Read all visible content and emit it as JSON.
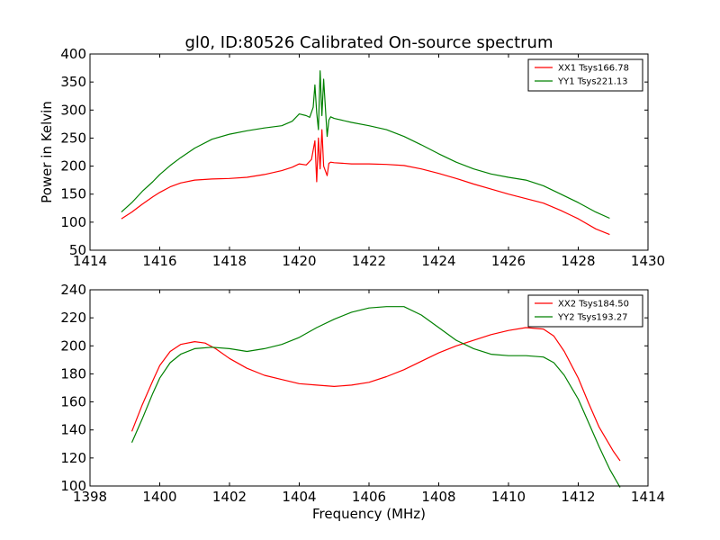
{
  "figure_title": "gl0, ID:80526 Calibrated On-source spectrum",
  "chart_data": [
    {
      "type": "line",
      "title": "gl0, ID:80526 Calibrated On-source spectrum",
      "xlabel": "",
      "ylabel": "Power in Kelvin",
      "xlim": [
        1414,
        1430
      ],
      "ylim": [
        50,
        400
      ],
      "xticks": [
        1414,
        1416,
        1418,
        1420,
        1422,
        1424,
        1426,
        1428,
        1430
      ],
      "yticks": [
        50,
        100,
        150,
        200,
        250,
        300,
        350,
        400
      ],
      "legend_position": "top-right",
      "grid": false,
      "series": [
        {
          "name": "XX1 Tsys166.78",
          "color": "#ff0000",
          "x": [
            1414.9,
            1415.2,
            1415.5,
            1415.8,
            1416.0,
            1416.3,
            1416.6,
            1417.0,
            1417.5,
            1418.0,
            1418.5,
            1419.0,
            1419.5,
            1419.8,
            1420.0,
            1420.2,
            1420.35,
            1420.45,
            1420.5,
            1420.55,
            1420.6,
            1420.65,
            1420.7,
            1420.8,
            1420.85,
            1420.9,
            1421.0,
            1421.5,
            1422.0,
            1422.5,
            1423.0,
            1423.5,
            1424.0,
            1424.5,
            1425.0,
            1425.5,
            1426.0,
            1426.5,
            1427.0,
            1427.5,
            1428.0,
            1428.5,
            1428.9
          ],
          "y": [
            106,
            118,
            132,
            145,
            153,
            163,
            170,
            175,
            177,
            178,
            180,
            185,
            192,
            198,
            204,
            202,
            212,
            245,
            172,
            250,
            195,
            265,
            200,
            183,
            205,
            207,
            206,
            204,
            204,
            203,
            201,
            195,
            187,
            178,
            168,
            159,
            150,
            142,
            134,
            121,
            106,
            88,
            78
          ]
        },
        {
          "name": "YY1 Tsys221.13",
          "color": "#008000",
          "x": [
            1414.9,
            1415.2,
            1415.5,
            1415.8,
            1416.0,
            1416.3,
            1416.6,
            1417.0,
            1417.5,
            1418.0,
            1418.5,
            1419.0,
            1419.5,
            1419.8,
            1420.0,
            1420.2,
            1420.3,
            1420.4,
            1420.45,
            1420.5,
            1420.55,
            1420.6,
            1420.65,
            1420.7,
            1420.8,
            1420.85,
            1420.9,
            1421.0,
            1421.5,
            1422.0,
            1422.5,
            1423.0,
            1423.5,
            1424.0,
            1424.5,
            1425.0,
            1425.5,
            1426.0,
            1426.5,
            1427.0,
            1427.5,
            1428.0,
            1428.5,
            1428.9
          ],
          "y": [
            118,
            135,
            155,
            172,
            185,
            201,
            215,
            232,
            248,
            257,
            263,
            268,
            272,
            280,
            293,
            290,
            287,
            305,
            345,
            295,
            265,
            370,
            290,
            355,
            253,
            282,
            288,
            285,
            278,
            272,
            265,
            253,
            238,
            222,
            207,
            195,
            186,
            180,
            175,
            165,
            150,
            135,
            118,
            107
          ]
        }
      ]
    },
    {
      "type": "line",
      "title": "",
      "xlabel": "Frequency (MHz)",
      "ylabel": "",
      "xlim": [
        1398,
        1414
      ],
      "ylim": [
        100,
        240
      ],
      "xticks": [
        1398,
        1400,
        1402,
        1404,
        1406,
        1408,
        1410,
        1412,
        1414
      ],
      "yticks": [
        100,
        120,
        140,
        160,
        180,
        200,
        220,
        240
      ],
      "legend_position": "top-right",
      "grid": false,
      "series": [
        {
          "name": "XX2 Tsys184.50",
          "color": "#ff0000",
          "x": [
            1399.2,
            1399.5,
            1399.8,
            1400.0,
            1400.3,
            1400.6,
            1401.0,
            1401.3,
            1401.6,
            1402.0,
            1402.5,
            1403.0,
            1403.5,
            1404.0,
            1404.5,
            1405.0,
            1405.5,
            1406.0,
            1406.5,
            1407.0,
            1407.5,
            1408.0,
            1408.5,
            1409.0,
            1409.5,
            1410.0,
            1410.5,
            1411.0,
            1411.3,
            1411.6,
            1412.0,
            1412.3,
            1412.6,
            1413.0,
            1413.2
          ],
          "y": [
            139,
            158,
            175,
            186,
            196,
            201,
            203,
            202,
            198,
            191,
            184,
            179,
            176,
            173,
            172,
            171,
            172,
            174,
            178,
            183,
            189,
            195,
            200,
            204,
            208,
            211,
            213,
            212,
            207,
            196,
            177,
            159,
            142,
            125,
            118
          ]
        },
        {
          "name": "YY2 Tsys193.27",
          "color": "#008000",
          "x": [
            1399.2,
            1399.5,
            1399.8,
            1400.0,
            1400.3,
            1400.6,
            1401.0,
            1401.5,
            1402.0,
            1402.5,
            1403.0,
            1403.5,
            1404.0,
            1404.5,
            1405.0,
            1405.5,
            1406.0,
            1406.5,
            1407.0,
            1407.5,
            1408.0,
            1408.5,
            1409.0,
            1409.5,
            1410.0,
            1410.5,
            1411.0,
            1411.3,
            1411.6,
            1412.0,
            1412.3,
            1412.6,
            1412.9,
            1413.2
          ],
          "y": [
            131,
            148,
            166,
            177,
            188,
            194,
            198,
            199,
            198,
            196,
            198,
            201,
            206,
            213,
            219,
            224,
            227,
            228,
            228,
            222,
            213,
            204,
            198,
            194,
            193,
            193,
            192,
            188,
            179,
            162,
            145,
            128,
            112,
            99
          ]
        }
      ]
    }
  ]
}
